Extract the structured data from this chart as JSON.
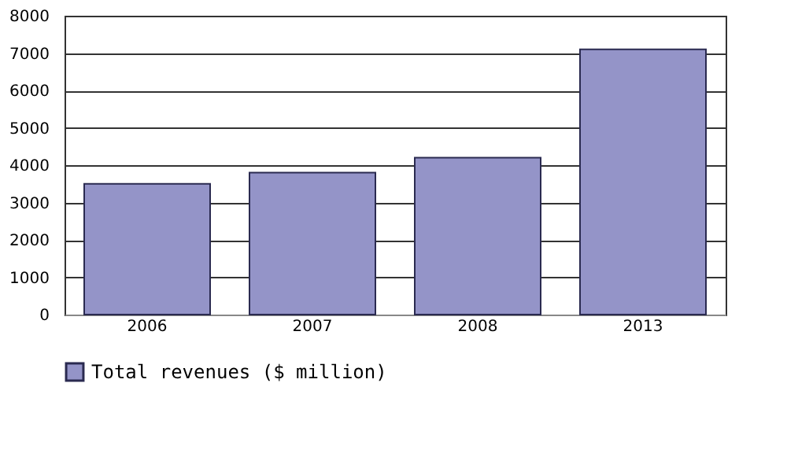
{
  "chart_data": {
    "type": "bar",
    "categories": [
      "2006",
      "2007",
      "2008",
      "2013"
    ],
    "series": [
      {
        "name": "Total revenues ($ million)",
        "color": "#9494c8",
        "values": [
          3500,
          3800,
          4200,
          7100
        ]
      }
    ],
    "ylim": [
      0,
      8000
    ],
    "yticks": [
      0,
      1000,
      2000,
      3000,
      4000,
      5000,
      6000,
      7000,
      8000
    ],
    "grid": "y",
    "legend": "bottom"
  }
}
